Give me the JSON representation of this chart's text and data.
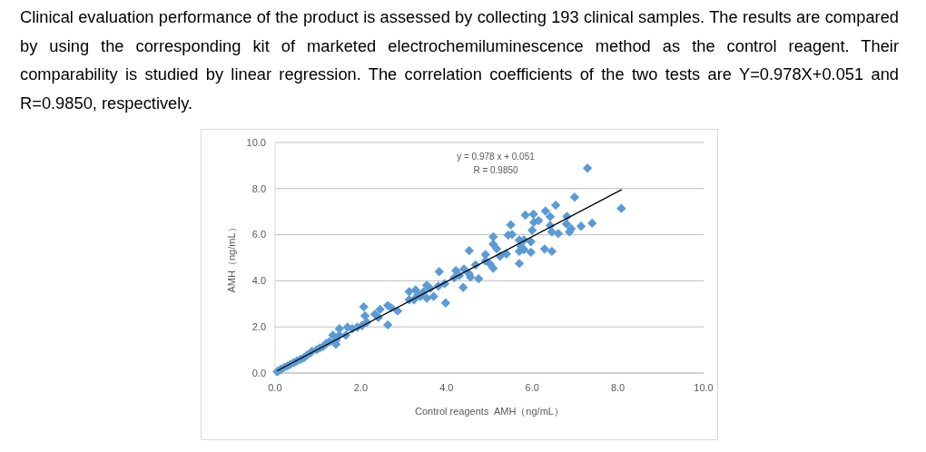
{
  "chart_data": {
    "type": "scatter",
    "title": "Clinical evaluation performance of the product is assessed by collecting 193 clinical samples. The results are compared by using the corresponding kit of marketed electrochemiluminescence method as the control reagent. Their comparability is studied by linear regression. The correlation coefficients of the two tests are Y=0.978X+0.051 and R=0.9850, respectively.",
    "xlabel": "Control reagents  AMH（ng/mL）",
    "ylabel": "AMH（ng/mL）",
    "annotations": [
      "y = 0.978 x + 0.051",
      "R = 0.9850"
    ],
    "xlim": [
      0,
      10
    ],
    "ylim": [
      0,
      10
    ],
    "xticks": [
      {
        "value": 0,
        "label": "0.0"
      },
      {
        "value": 2,
        "label": "2.0"
      },
      {
        "value": 4,
        "label": "4.0"
      },
      {
        "value": 6,
        "label": "6.0"
      },
      {
        "value": 8,
        "label": "8.0"
      },
      {
        "value": 10,
        "label": "10.0"
      }
    ],
    "yticks": [
      {
        "value": 0,
        "label": "0.0"
      },
      {
        "value": 2,
        "label": "2.0"
      },
      {
        "value": 4,
        "label": "4.0"
      },
      {
        "value": 6,
        "label": "6.0"
      },
      {
        "value": 8,
        "label": "8.0"
      },
      {
        "value": 10,
        "label": "10.0"
      }
    ],
    "grid": "y",
    "series": [
      {
        "color": "#5b9bd5",
        "marker": "diamond",
        "x": [
          7.29,
          8.08,
          6.99,
          7.4,
          7.14,
          6.55,
          6.31,
          6.03,
          5.84,
          6.15,
          6.04,
          6.42,
          6.42,
          6.46,
          6.61,
          6.81,
          6.8,
          6.87,
          6.91,
          6.0,
          5.97,
          5.97,
          6.29,
          6.46,
          5.5,
          5.44,
          5.53,
          5.7,
          5.74,
          5.7,
          5.81,
          5.7,
          5.81,
          5.09,
          5.09,
          5.17,
          5.25,
          5.4,
          4.53,
          4.91,
          4.91,
          5.02,
          5.09,
          4.68,
          4.53,
          4.56,
          4.75,
          4.41,
          4.22,
          4.3,
          4.18,
          4.39,
          3.83,
          3.96,
          3.81,
          3.98,
          3.7,
          3.54,
          3.62,
          3.47,
          3.54,
          3.39,
          3.28,
          3.13,
          3.13,
          3.24,
          3.33,
          2.86,
          2.71,
          2.63,
          2.63,
          2.45,
          2.41,
          2.33,
          2.07,
          2.1,
          2.14,
          2.03,
          1.92,
          1.8,
          1.69,
          1.65,
          1.5,
          1.5,
          1.42,
          1.35,
          1.27,
          1.2,
          1.42,
          1.12,
          1.04,
          0.97,
          0.86,
          0.82,
          0.74,
          0.67,
          0.59,
          0.51,
          0.44,
          0.36,
          0.29,
          0.21,
          0.14,
          0.08,
          0.05
        ],
        "values": [
          8.89,
          7.14,
          7.63,
          6.5,
          6.37,
          7.28,
          7.03,
          6.89,
          6.85,
          6.61,
          6.54,
          6.78,
          6.4,
          6.12,
          6.05,
          6.79,
          6.47,
          6.12,
          6.26,
          6.19,
          5.7,
          5.24,
          5.38,
          5.28,
          6.43,
          5.98,
          6.01,
          5.77,
          5.49,
          5.28,
          5.35,
          4.75,
          5.77,
          5.91,
          5.59,
          5.39,
          5.07,
          5.17,
          5.31,
          5.14,
          4.86,
          4.72,
          4.55,
          4.69,
          4.3,
          4.16,
          4.09,
          4.51,
          4.44,
          4.23,
          4.13,
          3.71,
          4.4,
          3.88,
          3.77,
          3.04,
          3.32,
          3.81,
          3.67,
          3.53,
          3.25,
          3.32,
          3.6,
          3.53,
          3.18,
          3.18,
          3.39,
          2.69,
          2.83,
          2.93,
          2.09,
          2.76,
          2.41,
          2.55,
          2.87,
          2.48,
          2.2,
          2.06,
          1.99,
          1.92,
          1.99,
          1.64,
          1.92,
          1.64,
          1.43,
          1.64,
          1.36,
          1.29,
          1.25,
          1.15,
          1.08,
          1.01,
          0.94,
          0.87,
          0.77,
          0.66,
          0.59,
          0.52,
          0.45,
          0.38,
          0.31,
          0.24,
          0.17,
          0.1,
          0.06
        ]
      },
      {
        "type": "line",
        "color": "#000000",
        "x": [
          0.06,
          8.08
        ],
        "values": [
          0.11,
          7.95
        ]
      }
    ]
  }
}
